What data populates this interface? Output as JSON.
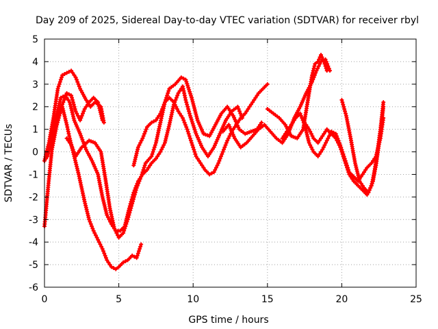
{
  "chart_data": {
    "type": "scatter",
    "title": "Day 209 of 2025, Sidereal Day-to-day VTEC variation (SDTVAR) for receiver rbyl",
    "xlabel": "GPS time / hours",
    "ylabel": "SDTVAR / TECUs",
    "xlim": [
      0,
      25
    ],
    "ylim": [
      -6,
      5
    ],
    "xticks": [
      "0",
      "5",
      "10",
      "15",
      "20",
      "25"
    ],
    "yticks": [
      "-6",
      "-5",
      "-4",
      "-3",
      "-2",
      "-1",
      "0",
      "1",
      "2",
      "3",
      "4",
      "5"
    ],
    "grid": true,
    "marker": "+",
    "color": "#ff0000",
    "series": [
      {
        "x": [
          0.0,
          0.1,
          0.3,
          0.5,
          0.8,
          1.0,
          1.2,
          1.5,
          1.7,
          2.0,
          2.3,
          2.7,
          3.0,
          3.3,
          3.6,
          3.9,
          4.2,
          4.5,
          4.8,
          5.0,
          5.3,
          5.6,
          5.9,
          6.2,
          6.5
        ],
        "y": [
          -3.3,
          -2.6,
          -1.2,
          0.1,
          1.1,
          1.6,
          2.0,
          1.2,
          0.6,
          -0.2,
          -1.0,
          -2.2,
          -3.0,
          -3.5,
          -3.9,
          -4.3,
          -4.8,
          -5.1,
          -5.2,
          -5.1,
          -4.9,
          -4.8,
          -4.6,
          -4.7,
          -4.1
        ]
      },
      {
        "x": [
          0.0,
          0.2,
          0.5,
          0.8,
          1.1,
          1.4,
          1.7,
          2.0,
          2.4,
          2.8,
          3.2,
          3.6,
          3.9,
          4.2,
          4.5,
          4.8,
          5.1,
          5.4,
          5.7,
          6.0,
          6.3,
          6.6,
          6.9,
          7.2,
          7.5,
          7.8,
          8.1,
          8.4,
          8.7,
          9.0,
          9.3,
          9.5,
          9.8,
          10.2,
          10.6,
          11.0,
          11.4,
          11.8,
          12.2,
          12.6,
          13.0,
          13.3
        ],
        "y": [
          -0.4,
          -0.2,
          0.5,
          1.6,
          2.4,
          2.5,
          2.2,
          1.4,
          0.8,
          0.1,
          -0.4,
          -1.0,
          -2.0,
          -2.8,
          -3.2,
          -3.5,
          -3.5,
          -3.3,
          -2.5,
          -1.8,
          -1.3,
          -1.0,
          -0.8,
          -0.5,
          -0.3,
          0.0,
          0.4,
          1.2,
          2.1,
          2.6,
          2.9,
          2.3,
          1.6,
          0.8,
          0.2,
          -0.2,
          0.2,
          0.8,
          1.4,
          1.8,
          2.0,
          1.5
        ]
      },
      {
        "x": [
          0.0,
          0.3,
          0.6,
          0.9,
          1.2,
          1.5,
          1.8,
          2.1,
          2.4,
          2.8,
          3.1,
          3.4,
          3.6,
          3.8,
          4.0
        ],
        "y": [
          -0.4,
          0.4,
          1.5,
          2.8,
          3.4,
          3.5,
          3.6,
          3.3,
          2.8,
          2.3,
          2.0,
          2.2,
          2.1,
          2.0,
          1.3
        ]
      },
      {
        "x": [
          0.6,
          0.9,
          1.2,
          1.5,
          1.8,
          2.1,
          2.4,
          2.7,
          3.0,
          3.3,
          3.6,
          3.9
        ],
        "y": [
          0.8,
          1.5,
          2.1,
          2.6,
          2.5,
          1.8,
          1.4,
          1.9,
          2.2,
          2.4,
          2.2,
          1.4
        ]
      },
      {
        "x": [
          1.5,
          1.8,
          2.1,
          2.5,
          3.0,
          3.4,
          3.8,
          4.1,
          4.4,
          4.7,
          5.0,
          5.3,
          5.6,
          5.9,
          6.2,
          6.5,
          6.8,
          7.2,
          7.5,
          7.8,
          8.1,
          8.4,
          8.8,
          9.2,
          9.5,
          9.9,
          10.3,
          10.7,
          11.1,
          11.5,
          11.9,
          12.3,
          12.7,
          13.1,
          13.5,
          13.9,
          14.3,
          14.6
        ],
        "y": [
          0.6,
          0.3,
          -0.2,
          0.2,
          0.5,
          0.4,
          0.0,
          -1.2,
          -2.5,
          -3.4,
          -3.8,
          -3.6,
          -3.0,
          -2.3,
          -1.6,
          -1.1,
          -0.5,
          -0.2,
          0.4,
          1.3,
          2.2,
          2.8,
          3.0,
          3.3,
          3.2,
          2.4,
          1.4,
          0.8,
          0.7,
          1.2,
          1.7,
          2.0,
          1.6,
          1.0,
          0.8,
          0.9,
          1.0,
          1.3
        ]
      },
      {
        "x": [
          6.0,
          6.3,
          6.6,
          6.9,
          7.2,
          7.5,
          7.8,
          8.1,
          8.4,
          8.7,
          9.0,
          9.3,
          9.6,
          9.9,
          10.2,
          10.5,
          10.8,
          11.1,
          11.4,
          11.7,
          12.0,
          12.3,
          12.6,
          12.9,
          13.2,
          13.5,
          13.8,
          14.1,
          14.4,
          14.7,
          15.0
        ],
        "y": [
          -0.6,
          0.2,
          0.6,
          1.1,
          1.3,
          1.4,
          1.7,
          2.2,
          2.4,
          2.2,
          1.8,
          1.5,
          1.0,
          0.4,
          -0.2,
          -0.5,
          -0.8,
          -1.0,
          -0.9,
          -0.5,
          0.0,
          0.5,
          0.9,
          1.2,
          1.5,
          1.7,
          2.0,
          2.3,
          2.6,
          2.8,
          3.0
        ]
      },
      {
        "x": [
          12.0,
          12.4,
          12.8,
          13.2,
          13.6,
          14.0,
          14.4,
          14.8,
          15.2,
          15.6,
          16.0,
          16.4,
          16.8,
          17.2,
          17.6,
          18.0,
          18.3,
          18.6,
          18.9,
          19.2
        ],
        "y": [
          0.9,
          1.2,
          0.6,
          0.2,
          0.4,
          0.7,
          1.0,
          1.2,
          0.9,
          0.6,
          0.4,
          0.8,
          1.5,
          2.0,
          2.6,
          3.1,
          3.6,
          4.0,
          4.1,
          3.6
        ]
      },
      {
        "x": [
          15.0,
          15.4,
          15.8,
          16.2,
          16.6,
          17.0,
          17.4,
          17.7,
          18.0,
          18.2,
          18.4,
          18.6,
          18.8,
          19.0
        ],
        "y": [
          1.9,
          1.7,
          1.5,
          1.2,
          0.7,
          0.6,
          1.0,
          2.2,
          3.4,
          3.9,
          4.0,
          4.3,
          4.0,
          3.6
        ]
      },
      {
        "x": [
          16.0,
          16.3,
          16.6,
          16.9,
          17.2,
          17.5,
          17.8,
          18.1,
          18.4,
          18.7,
          19.0,
          19.3,
          19.6,
          19.9,
          20.2,
          20.5,
          20.8,
          21.1,
          21.4,
          21.7,
          22.0,
          22.3,
          22.6,
          22.8
        ],
        "y": [
          0.6,
          0.9,
          1.2,
          1.5,
          1.7,
          1.2,
          0.4,
          0.0,
          -0.2,
          0.1,
          0.5,
          0.9,
          0.8,
          0.3,
          -0.3,
          -0.9,
          -1.1,
          -1.3,
          -1.0,
          -0.7,
          -0.5,
          -0.2,
          0.6,
          1.5
        ]
      },
      {
        "x": [
          17.5,
          17.8,
          18.1,
          18.4,
          18.7,
          19.0,
          19.3,
          19.6,
          19.9,
          20.2,
          20.5,
          20.8,
          21.1,
          21.4,
          21.7,
          22.0,
          22.3,
          22.6,
          22.8
        ],
        "y": [
          1.3,
          1.0,
          0.6,
          0.4,
          0.7,
          1.0,
          0.8,
          0.6,
          0.2,
          -0.4,
          -1.0,
          -1.3,
          -1.5,
          -1.7,
          -1.9,
          -1.5,
          -0.6,
          0.8,
          2.0
        ]
      },
      {
        "x": [
          20.0,
          20.3,
          20.6,
          20.9,
          21.2,
          21.5,
          21.8,
          22.1,
          22.4,
          22.6,
          22.8
        ],
        "y": [
          2.3,
          1.6,
          0.6,
          -0.5,
          -1.3,
          -1.6,
          -1.8,
          -1.3,
          0.0,
          1.0,
          2.2
        ]
      }
    ]
  }
}
